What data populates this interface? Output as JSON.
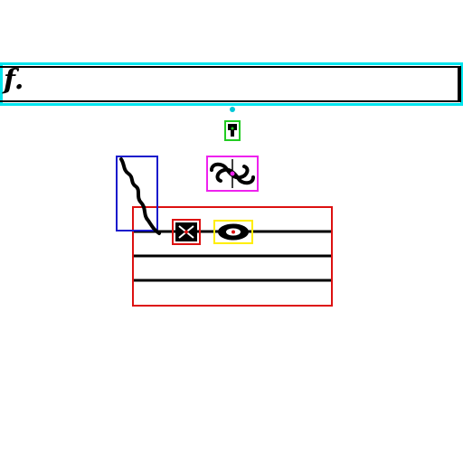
{
  "glyph_text": {
    "dynamic_mark": "f."
  },
  "annotation_boxes": [
    {
      "name": "dynamic-mark-box",
      "color": "#00e5ee"
    },
    {
      "name": "fermata-small-box",
      "color": "#22cc22"
    },
    {
      "name": "turn-ornament-box",
      "color": "#ee22ee"
    },
    {
      "name": "slur-box",
      "color": "#1a1acc"
    },
    {
      "name": "staff-box",
      "color": "#dd1111"
    },
    {
      "name": "accidental-box",
      "color": "#dd1111"
    },
    {
      "name": "notehead-box",
      "color": "#ffee00"
    }
  ],
  "colors": {
    "ink": "#000000",
    "background": "#ffffff"
  }
}
